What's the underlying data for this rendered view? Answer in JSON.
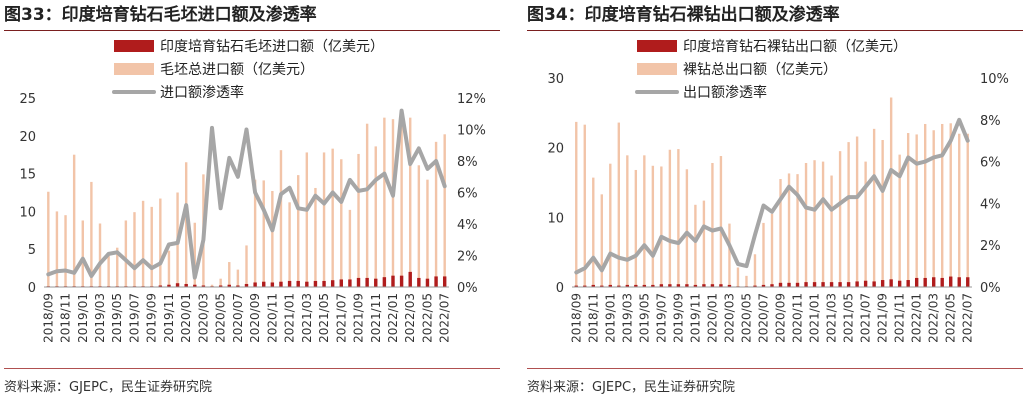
{
  "colors": {
    "accent": "#b01c1c",
    "total": "#f2c4a8",
    "ratio": "#a6a6a6",
    "rule": "#7a1f1f"
  },
  "chart_data": [
    {
      "type": "bar",
      "title": "图33：印度培育钻石毛坯进口额及渗透率",
      "source": "资料来源：GJEPC，民生证券研究院",
      "categories": [
        "2018/09",
        "2018/10",
        "2018/11",
        "2018/12",
        "2019/01",
        "2019/02",
        "2019/03",
        "2019/04",
        "2019/05",
        "2019/06",
        "2019/07",
        "2019/08",
        "2019/09",
        "2019/10",
        "2019/11",
        "2019/12",
        "2020/01",
        "2020/02",
        "2020/03",
        "2020/04",
        "2020/05",
        "2020/06",
        "2020/07",
        "2020/08",
        "2020/09",
        "2020/10",
        "2020/11",
        "2020/12",
        "2021/01",
        "2021/02",
        "2021/03",
        "2021/04",
        "2021/05",
        "2021/06",
        "2021/07",
        "2021/08",
        "2021/09",
        "2021/10",
        "2021/11",
        "2021/12",
        "2022/01",
        "2022/02",
        "2022/03",
        "2022/04",
        "2022/05",
        "2022/06",
        "2022/07"
      ],
      "x_tick_labels": [
        "2018/09",
        "2018/11",
        "2019/01",
        "2019/03",
        "2019/05",
        "2019/07",
        "2019/09",
        "2019/11",
        "2020/01",
        "2020/03",
        "2020/05",
        "2020/07",
        "2020/09",
        "2020/11",
        "2021/01",
        "2021/03",
        "2021/05",
        "2021/07",
        "2021/09",
        "2021/11",
        "2022/01",
        "2022/03",
        "2022/05",
        "2022/07"
      ],
      "series": [
        {
          "name": "印度培育钻石毛坯进口额（亿美元）",
          "kind": "bar",
          "axis": "left",
          "values": [
            0.1,
            0.1,
            0.1,
            0.1,
            0.1,
            0.1,
            0.1,
            0.1,
            0.1,
            0.1,
            0.1,
            0.1,
            0.1,
            0.2,
            0.3,
            0.5,
            0.4,
            0.3,
            0.2,
            0.1,
            0.2,
            0.3,
            0.2,
            0.4,
            0.6,
            0.7,
            0.6,
            0.7,
            0.8,
            0.8,
            0.7,
            0.8,
            0.8,
            0.9,
            1.0,
            1.0,
            1.2,
            1.2,
            1.1,
            1.3,
            1.5,
            1.5,
            2.0,
            1.2,
            1.1,
            1.4,
            1.4
          ]
        },
        {
          "name": "毛坯总进口额（亿美元）",
          "kind": "bar",
          "axis": "left",
          "values": [
            12.6,
            10.0,
            9.5,
            17.5,
            8.8,
            13.9,
            8.4,
            4.6,
            5.2,
            8.8,
            9.9,
            11.4,
            10.6,
            11.7,
            4.8,
            12.5,
            16.5,
            8.5,
            14.9,
            0.3,
            1.1,
            3.3,
            2.3,
            5.5,
            14.2,
            14.1,
            12.7,
            18.1,
            11.2,
            14.8,
            17.8,
            13.1,
            17.8,
            18.3,
            16.9,
            10.2,
            17.6,
            21.6,
            18.6,
            22.4,
            22.2,
            22.1,
            22.4,
            16.1,
            14.2,
            19.2,
            20.2
          ]
        },
        {
          "name": "进口额渗透率",
          "kind": "line",
          "axis": "right",
          "values": [
            0.8,
            1.0,
            1.05,
            0.9,
            1.8,
            0.7,
            1.5,
            2.1,
            2.2,
            1.7,
            1.2,
            1.7,
            1.2,
            1.5,
            2.7,
            2.8,
            5.2,
            0.6,
            3.0,
            10.1,
            5.0,
            8.2,
            7.0,
            10.0,
            6.0,
            4.9,
            3.6,
            5.9,
            6.3,
            5.0,
            4.9,
            5.8,
            5.3,
            6.0,
            5.4,
            6.8,
            6.1,
            6.2,
            6.8,
            7.2,
            5.8,
            11.2,
            7.8,
            8.8,
            7.5,
            8.0,
            6.4
          ]
        }
      ],
      "ylim_left": [
        0,
        25
      ],
      "yticks_left": [
        "0",
        "5",
        "10",
        "15",
        "20",
        "25"
      ],
      "ylim_right": [
        0,
        12
      ],
      "yticks_right": [
        "0%",
        "2%",
        "4%",
        "6%",
        "8%",
        "10%",
        "12%"
      ],
      "legend_position": "top-center",
      "grid": false
    },
    {
      "type": "bar",
      "title": "图34：印度培育钻石裸钻出口额及渗透率",
      "source": "资料来源：GJEPC，民生证券研究院",
      "categories": [
        "2018/09",
        "2018/10",
        "2018/11",
        "2018/12",
        "2019/01",
        "2019/02",
        "2019/03",
        "2019/04",
        "2019/05",
        "2019/06",
        "2019/07",
        "2019/08",
        "2019/09",
        "2019/10",
        "2019/11",
        "2019/12",
        "2020/01",
        "2020/02",
        "2020/03",
        "2020/04",
        "2020/05",
        "2020/06",
        "2020/07",
        "2020/08",
        "2020/09",
        "2020/10",
        "2020/11",
        "2020/12",
        "2021/01",
        "2021/02",
        "2021/03",
        "2021/04",
        "2021/05",
        "2021/06",
        "2021/07",
        "2021/08",
        "2021/09",
        "2021/10",
        "2021/11",
        "2021/12",
        "2022/01",
        "2022/02",
        "2022/03",
        "2022/04",
        "2022/05",
        "2022/06",
        "2022/07"
      ],
      "x_tick_labels": [
        "2018/09",
        "2018/11",
        "2019/01",
        "2019/03",
        "2019/05",
        "2019/07",
        "2019/09",
        "2019/11",
        "2020/01",
        "2020/03",
        "2020/05",
        "2020/07",
        "2020/09",
        "2020/11",
        "2021/01",
        "2021/03",
        "2021/05",
        "2021/07",
        "2021/09",
        "2021/11",
        "2022/01",
        "2022/03",
        "2022/05",
        "2022/07"
      ],
      "series": [
        {
          "name": "印度培育钻石裸钻出口额（亿美元）",
          "kind": "bar",
          "axis": "left",
          "values": [
            0.2,
            0.2,
            0.3,
            0.2,
            0.3,
            0.2,
            0.3,
            0.3,
            0.3,
            0.3,
            0.4,
            0.4,
            0.4,
            0.4,
            0.3,
            0.4,
            0.4,
            0.4,
            0.3,
            0.1,
            0.1,
            0.2,
            0.3,
            0.4,
            0.6,
            0.6,
            0.6,
            0.7,
            0.7,
            0.7,
            0.7,
            0.7,
            0.7,
            0.8,
            0.9,
            0.8,
            1.0,
            1.1,
            0.9,
            1.0,
            1.3,
            1.3,
            1.4,
            1.3,
            1.5,
            1.4,
            1.4
          ]
        },
        {
          "name": "裸钻总出口额（亿美元）",
          "kind": "bar",
          "axis": "left",
          "values": [
            23.7,
            23.3,
            15.7,
            13.3,
            17.7,
            23.6,
            18.9,
            16.8,
            18.9,
            17.4,
            17.3,
            19.7,
            19.8,
            16.9,
            11.8,
            12.4,
            17.8,
            18.8,
            9.1,
            2.8,
            1.6,
            4.7,
            9.2,
            10.5,
            15.5,
            16.3,
            16.2,
            17.8,
            18.2,
            18.0,
            16.0,
            19.5,
            20.8,
            21.6,
            18.0,
            22.7,
            21.1,
            27.2,
            19.0,
            22.1,
            21.9,
            23.4,
            22.5,
            23.4,
            23.5,
            22.0,
            22.0
          ]
        },
        {
          "name": "出口额渗透率",
          "kind": "line",
          "axis": "right",
          "values": [
            0.7,
            0.9,
            1.4,
            0.8,
            1.6,
            1.4,
            1.3,
            1.5,
            2.0,
            1.5,
            2.4,
            2.2,
            2.1,
            2.6,
            2.2,
            2.9,
            2.7,
            2.8,
            2.0,
            1.1,
            1.0,
            2.5,
            3.9,
            3.6,
            4.2,
            4.8,
            4.4,
            3.8,
            3.7,
            4.2,
            3.7,
            4.0,
            4.3,
            4.3,
            4.8,
            5.3,
            4.6,
            5.6,
            5.3,
            6.2,
            5.9,
            6.0,
            6.2,
            6.3,
            7.0,
            8.0,
            7.0
          ]
        }
      ],
      "ylim_left": [
        0,
        30
      ],
      "yticks_left": [
        "0",
        "10",
        "20",
        "30"
      ],
      "ylim_right": [
        0,
        10
      ],
      "yticks_right": [
        "0%",
        "2%",
        "4%",
        "6%",
        "8%",
        "10%"
      ],
      "legend_position": "top-center",
      "grid": false
    }
  ]
}
